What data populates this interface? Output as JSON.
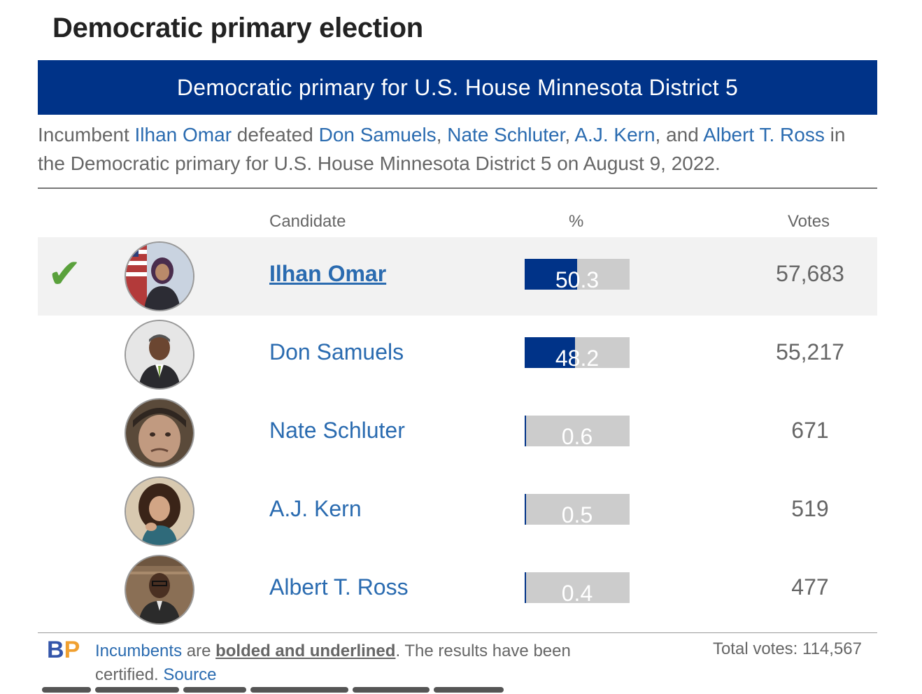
{
  "page": {
    "heading": "Democratic primary election"
  },
  "race": {
    "title": "Democratic primary for U.S. House Minnesota District 5",
    "summary": {
      "prefix": "Incumbent ",
      "winner": "Ilhan Omar",
      "defeated": " defeated ",
      "opponents": [
        "Don Samuels",
        "Nate Schluter",
        "A.J. Kern",
        "Albert T. Ross"
      ],
      "sep1": ", ",
      "sep2": ", ",
      "sep3": ", and ",
      "suffix": " in the Democratic primary for U.S. House Minnesota District 5 on August 9, 2022."
    }
  },
  "table": {
    "columns": {
      "candidate": "Candidate",
      "percent": "%",
      "votes": "Votes"
    },
    "rows": [
      {
        "name": "Ilhan Omar",
        "percent": 50.3,
        "percent_label": "50.3",
        "votes": "57,683",
        "winner": true,
        "incumbent": true
      },
      {
        "name": "Don Samuels",
        "percent": 48.2,
        "percent_label": "48.2",
        "votes": "55,217",
        "winner": false,
        "incumbent": false
      },
      {
        "name": "Nate Schluter",
        "percent": 0.6,
        "percent_label": "0.6",
        "votes": "671",
        "winner": false,
        "incumbent": false
      },
      {
        "name": "A.J. Kern",
        "percent": 0.5,
        "percent_label": "0.5",
        "votes": "519",
        "winner": false,
        "incumbent": false
      },
      {
        "name": "Albert T. Ross",
        "percent": 0.4,
        "percent_label": "0.4",
        "votes": "477",
        "winner": false,
        "incumbent": false
      }
    ],
    "winner_mark": "✔"
  },
  "footer": {
    "logo_b": "B",
    "logo_p": "P",
    "incumbents_link": "Incumbents",
    "are": " are ",
    "bolded": "bolded and underlined",
    "certified": ". The results have been certified. ",
    "source_link": "Source",
    "total_votes": "Total votes: 114,567"
  },
  "colors": {
    "header_bg": "#003388",
    "link": "#2a6bb0",
    "bar_fill": "#003388",
    "bar_track": "#cccccc",
    "winner_check": "#5aa13c",
    "logo_b": "#3355aa",
    "logo_p": "#f0a030"
  }
}
